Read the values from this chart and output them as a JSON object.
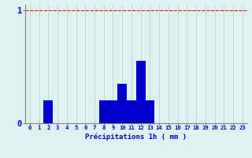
{
  "hours": [
    0,
    1,
    2,
    3,
    4,
    5,
    6,
    7,
    8,
    9,
    10,
    11,
    12,
    13,
    14,
    15,
    16,
    17,
    18,
    19,
    20,
    21,
    22,
    23
  ],
  "values": [
    0,
    0,
    0.2,
    0,
    0,
    0,
    0,
    0,
    0.2,
    0.2,
    0.35,
    0.2,
    0.55,
    0.2,
    0,
    0,
    0,
    0,
    0,
    0,
    0,
    0,
    0,
    0
  ],
  "bar_color": "#0000cc",
  "background_color": "#dff2f2",
  "grid_color": "#b8d4d4",
  "axis_color": "#808080",
  "text_color": "#0000cc",
  "xlabel": "Précipitations 1h ( mm )",
  "ylim": [
    0,
    1.05
  ],
  "yticks": [
    0,
    1
  ],
  "red_line_y": 1.0
}
